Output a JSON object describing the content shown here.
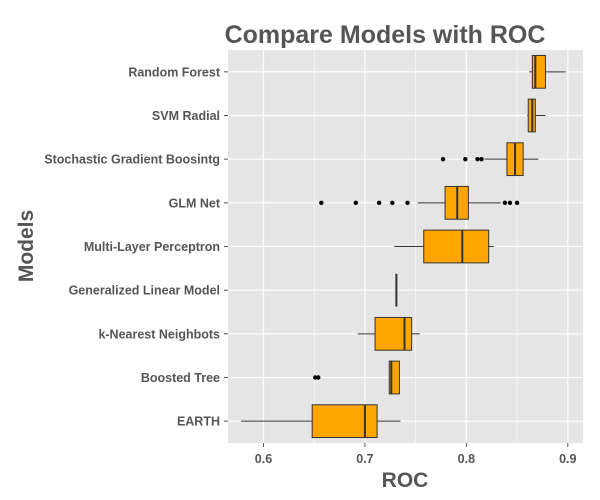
{
  "chart_data": {
    "type": "boxplot",
    "orientation": "horizontal",
    "title": "Compare Models with ROC",
    "xlabel": "ROC",
    "ylabel": "Models",
    "xlim": [
      0.565,
      0.915
    ],
    "x_ticks": [
      "0.6",
      "0.7",
      "0.8",
      "0.9"
    ],
    "grid": true,
    "colors": {
      "panel": "#E5E5E5",
      "grid": "#FFFFFF",
      "box_fill": "#FFA500",
      "box_stroke": "#333333",
      "outlier": "#000000"
    },
    "categories": [
      "Random Forest",
      "SVM Radial",
      "Stochastic Gradient Boosintg",
      "GLM Net",
      "Multi-Layer Perceptron",
      "Generalized Linear Model",
      "k-Nearest Neighbots",
      "Boosted Tree",
      "EARTH"
    ],
    "boxes": [
      {
        "whisker_low": 0.862,
        "q1": 0.865,
        "median": 0.868,
        "q3": 0.878,
        "whisker_high": 0.898,
        "outliers": []
      },
      {
        "whisker_low": 0.86,
        "q1": 0.861,
        "median": 0.865,
        "q3": 0.868,
        "whisker_high": 0.878,
        "outliers": []
      },
      {
        "whisker_low": 0.818,
        "q1": 0.84,
        "median": 0.848,
        "q3": 0.856,
        "whisker_high": 0.871,
        "outliers": [
          0.777,
          0.799,
          0.811,
          0.815
        ]
      },
      {
        "whisker_low": 0.752,
        "q1": 0.779,
        "median": 0.791,
        "q3": 0.802,
        "whisker_high": 0.834,
        "outliers": [
          0.657,
          0.691,
          0.714,
          0.727,
          0.742,
          0.838,
          0.843,
          0.85
        ]
      },
      {
        "whisker_low": 0.729,
        "q1": 0.758,
        "median": 0.796,
        "q3": 0.822,
        "whisker_high": 0.827,
        "outliers": []
      },
      {
        "whisker_low": 0.731,
        "q1": 0.731,
        "median": 0.731,
        "q3": 0.731,
        "whisker_high": 0.731,
        "outliers": []
      },
      {
        "whisker_low": 0.693,
        "q1": 0.71,
        "median": 0.739,
        "q3": 0.746,
        "whisker_high": 0.754,
        "outliers": []
      },
      {
        "whisker_low": 0.724,
        "q1": 0.724,
        "median": 0.726,
        "q3": 0.734,
        "whisker_high": 0.734,
        "outliers": [
          0.651,
          0.654
        ]
      },
      {
        "whisker_low": 0.578,
        "q1": 0.648,
        "median": 0.7,
        "q3": 0.712,
        "whisker_high": 0.735,
        "outliers": []
      }
    ]
  }
}
